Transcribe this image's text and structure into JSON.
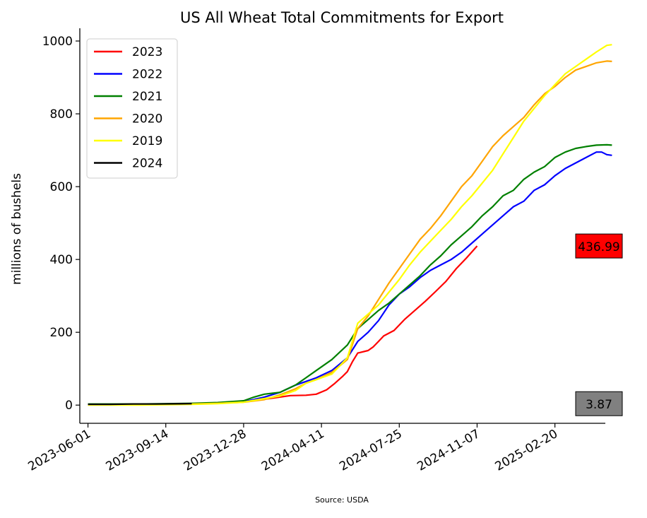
{
  "chart_data": {
    "type": "line",
    "title": "US All Wheat Total Commitments for Export",
    "xlabel": "",
    "ylabel": "millions of bushels",
    "source": "Source: USDA",
    "x_ticks": [
      "2023-06-01",
      "2023-09-14",
      "2023-12-28",
      "2024-04-11",
      "2024-07-25",
      "2024-11-07",
      "2025-02-20"
    ],
    "x_range": [
      "2023-05-21",
      "2025-04-29"
    ],
    "ylim": [
      -50,
      1035
    ],
    "y_ticks": [
      0,
      200,
      400,
      600,
      800,
      1000
    ],
    "grid": false,
    "legend_position": "top-left",
    "series": [
      {
        "name": "2023",
        "color": "#ff0000",
        "points": [
          [
            "2023-06-01",
            2
          ],
          [
            "2023-07-06",
            2
          ],
          [
            "2023-08-10",
            2
          ],
          [
            "2023-09-14",
            3
          ],
          [
            "2023-10-19",
            4
          ],
          [
            "2023-11-23",
            6
          ],
          [
            "2023-12-28",
            9
          ],
          [
            "2024-01-18",
            14
          ],
          [
            "2024-02-08",
            20
          ],
          [
            "2024-02-29",
            26
          ],
          [
            "2024-03-21",
            27
          ],
          [
            "2024-04-04",
            30
          ],
          [
            "2024-04-18",
            42
          ],
          [
            "2024-04-28",
            58
          ],
          [
            "2024-05-09",
            78
          ],
          [
            "2024-05-16",
            92
          ],
          [
            "2024-05-23",
            120
          ],
          [
            "2024-05-30",
            143
          ],
          [
            "2024-06-13",
            150
          ],
          [
            "2024-06-20",
            160
          ],
          [
            "2024-06-27",
            175
          ],
          [
            "2024-07-04",
            190
          ],
          [
            "2024-07-18",
            205
          ],
          [
            "2024-08-01",
            235
          ],
          [
            "2024-08-15",
            260
          ],
          [
            "2024-08-29",
            285
          ],
          [
            "2024-09-12",
            312
          ],
          [
            "2024-09-26",
            340
          ],
          [
            "2024-10-10",
            375
          ],
          [
            "2024-10-24",
            405
          ],
          [
            "2024-11-07",
            437
          ]
        ]
      },
      {
        "name": "2022",
        "color": "#0000ff",
        "points": [
          [
            "2023-06-01",
            1
          ],
          [
            "2023-08-10",
            2
          ],
          [
            "2023-10-19",
            4
          ],
          [
            "2023-11-23",
            6
          ],
          [
            "2023-12-28",
            9
          ],
          [
            "2024-01-25",
            22
          ],
          [
            "2024-02-15",
            35
          ],
          [
            "2024-03-07",
            55
          ],
          [
            "2024-03-21",
            65
          ],
          [
            "2024-04-04",
            75
          ],
          [
            "2024-04-25",
            95
          ],
          [
            "2024-05-16",
            130
          ],
          [
            "2024-05-30",
            175
          ],
          [
            "2024-06-13",
            200
          ],
          [
            "2024-06-27",
            232
          ],
          [
            "2024-07-11",
            275
          ],
          [
            "2024-07-25",
            305
          ],
          [
            "2024-08-08",
            325
          ],
          [
            "2024-08-22",
            350
          ],
          [
            "2024-09-05",
            370
          ],
          [
            "2024-09-19",
            385
          ],
          [
            "2024-10-03",
            400
          ],
          [
            "2024-10-17",
            420
          ],
          [
            "2024-10-31",
            445
          ],
          [
            "2024-11-14",
            470
          ],
          [
            "2024-11-28",
            495
          ],
          [
            "2024-12-12",
            520
          ],
          [
            "2024-12-26",
            545
          ],
          [
            "2025-01-09",
            560
          ],
          [
            "2025-01-23",
            590
          ],
          [
            "2025-02-06",
            605
          ],
          [
            "2025-02-20",
            630
          ],
          [
            "2025-03-06",
            650
          ],
          [
            "2025-03-20",
            665
          ],
          [
            "2025-04-03",
            680
          ],
          [
            "2025-04-17",
            695
          ],
          [
            "2025-04-24",
            695
          ],
          [
            "2025-05-01",
            688
          ],
          [
            "2025-05-08",
            686
          ]
        ]
      },
      {
        "name": "2021",
        "color": "#008000",
        "points": [
          [
            "2023-06-01",
            3
          ],
          [
            "2023-08-10",
            3
          ],
          [
            "2023-10-19",
            5
          ],
          [
            "2023-11-23",
            7
          ],
          [
            "2023-12-28",
            12
          ],
          [
            "2024-01-11",
            22
          ],
          [
            "2024-01-25",
            30
          ],
          [
            "2024-02-15",
            35
          ],
          [
            "2024-03-07",
            55
          ],
          [
            "2024-03-21",
            75
          ],
          [
            "2024-04-04",
            95
          ],
          [
            "2024-04-25",
            125
          ],
          [
            "2024-05-16",
            165
          ],
          [
            "2024-05-30",
            210
          ],
          [
            "2024-06-13",
            235
          ],
          [
            "2024-06-27",
            260
          ],
          [
            "2024-07-11",
            280
          ],
          [
            "2024-07-25",
            305
          ],
          [
            "2024-08-08",
            330
          ],
          [
            "2024-08-22",
            355
          ],
          [
            "2024-09-05",
            385
          ],
          [
            "2024-09-19",
            410
          ],
          [
            "2024-10-03",
            440
          ],
          [
            "2024-10-17",
            465
          ],
          [
            "2024-10-31",
            490
          ],
          [
            "2024-11-14",
            520
          ],
          [
            "2024-11-28",
            545
          ],
          [
            "2024-12-12",
            575
          ],
          [
            "2024-12-26",
            590
          ],
          [
            "2025-01-09",
            620
          ],
          [
            "2025-01-23",
            640
          ],
          [
            "2025-02-06",
            655
          ],
          [
            "2025-02-20",
            680
          ],
          [
            "2025-03-06",
            695
          ],
          [
            "2025-03-20",
            705
          ],
          [
            "2025-04-03",
            710
          ],
          [
            "2025-04-17",
            714
          ],
          [
            "2025-05-01",
            715
          ],
          [
            "2025-05-08",
            714
          ]
        ]
      },
      {
        "name": "2020",
        "color": "#ffa500",
        "points": [
          [
            "2023-06-01",
            1
          ],
          [
            "2023-08-10",
            1
          ],
          [
            "2023-10-19",
            3
          ],
          [
            "2023-11-23",
            5
          ],
          [
            "2023-12-28",
            8
          ],
          [
            "2024-01-25",
            15
          ],
          [
            "2024-02-15",
            28
          ],
          [
            "2024-03-07",
            45
          ],
          [
            "2024-03-21",
            60
          ],
          [
            "2024-04-04",
            70
          ],
          [
            "2024-04-25",
            90
          ],
          [
            "2024-05-16",
            125
          ],
          [
            "2024-05-30",
            210
          ],
          [
            "2024-06-13",
            245
          ],
          [
            "2024-06-27",
            290
          ],
          [
            "2024-07-11",
            335
          ],
          [
            "2024-07-25",
            375
          ],
          [
            "2024-08-08",
            415
          ],
          [
            "2024-08-22",
            455
          ],
          [
            "2024-09-05",
            485
          ],
          [
            "2024-09-19",
            520
          ],
          [
            "2024-10-03",
            560
          ],
          [
            "2024-10-17",
            600
          ],
          [
            "2024-10-31",
            630
          ],
          [
            "2024-11-14",
            670
          ],
          [
            "2024-11-28",
            710
          ],
          [
            "2024-12-12",
            740
          ],
          [
            "2024-12-26",
            765
          ],
          [
            "2025-01-09",
            790
          ],
          [
            "2025-01-23",
            825
          ],
          [
            "2025-02-06",
            855
          ],
          [
            "2025-02-20",
            875
          ],
          [
            "2025-03-06",
            900
          ],
          [
            "2025-03-20",
            920
          ],
          [
            "2025-04-03",
            930
          ],
          [
            "2025-04-17",
            940
          ],
          [
            "2025-05-01",
            945
          ],
          [
            "2025-05-08",
            944
          ]
        ]
      },
      {
        "name": "2019",
        "color": "#ffff00",
        "points": [
          [
            "2023-06-01",
            0
          ],
          [
            "2023-08-10",
            0
          ],
          [
            "2023-10-19",
            2
          ],
          [
            "2023-11-23",
            4
          ],
          [
            "2023-12-28",
            8
          ],
          [
            "2024-01-25",
            18
          ],
          [
            "2024-02-15",
            25
          ],
          [
            "2024-03-07",
            40
          ],
          [
            "2024-03-21",
            60
          ],
          [
            "2024-04-04",
            70
          ],
          [
            "2024-04-25",
            85
          ],
          [
            "2024-05-16",
            130
          ],
          [
            "2024-05-30",
            225
          ],
          [
            "2024-06-13",
            250
          ],
          [
            "2024-06-27",
            275
          ],
          [
            "2024-07-11",
            310
          ],
          [
            "2024-07-25",
            345
          ],
          [
            "2024-08-08",
            385
          ],
          [
            "2024-08-22",
            420
          ],
          [
            "2024-09-05",
            450
          ],
          [
            "2024-09-19",
            480
          ],
          [
            "2024-10-03",
            510
          ],
          [
            "2024-10-17",
            545
          ],
          [
            "2024-10-31",
            575
          ],
          [
            "2024-11-14",
            610
          ],
          [
            "2024-11-28",
            645
          ],
          [
            "2024-12-12",
            690
          ],
          [
            "2024-12-26",
            735
          ],
          [
            "2025-01-09",
            780
          ],
          [
            "2025-01-23",
            815
          ],
          [
            "2025-02-06",
            850
          ],
          [
            "2025-02-20",
            880
          ],
          [
            "2025-03-06",
            910
          ],
          [
            "2025-03-20",
            930
          ],
          [
            "2025-04-03",
            950
          ],
          [
            "2025-04-17",
            970
          ],
          [
            "2025-05-01",
            988
          ],
          [
            "2025-05-08",
            990
          ]
        ]
      },
      {
        "name": "2024",
        "color": "#000000",
        "points": [
          [
            "2023-06-01",
            2
          ],
          [
            "2023-07-01",
            2
          ],
          [
            "2023-08-01",
            3
          ],
          [
            "2023-09-01",
            3
          ],
          [
            "2023-10-01",
            3.5
          ],
          [
            "2023-10-19",
            3.87
          ]
        ]
      }
    ],
    "annotations": [
      {
        "text": "436.99",
        "y": 436.99,
        "color": "#ff0000"
      },
      {
        "text": "3.87",
        "y": 3.87,
        "color": "#808080"
      }
    ]
  }
}
